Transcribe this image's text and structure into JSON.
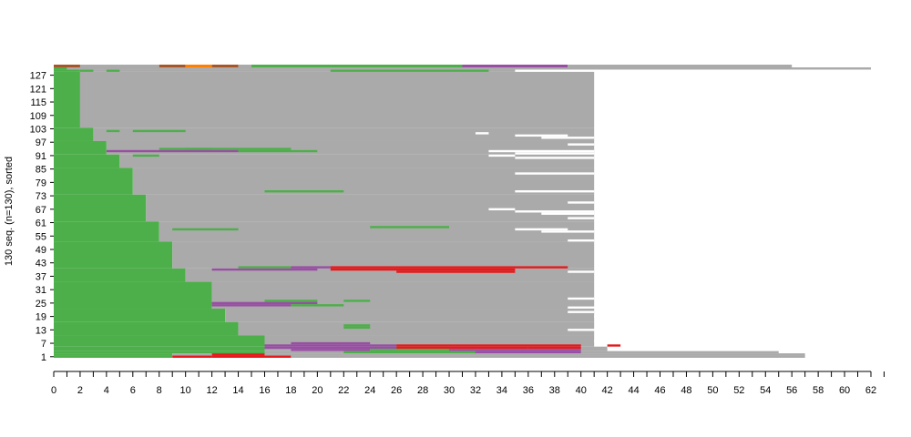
{
  "chart_data": {
    "type": "heatmap",
    "title": "",
    "xlabel": "",
    "ylabel": "130 seq. (n=130), sorted",
    "xlim": [
      0,
      62
    ],
    "ylim": [
      0,
      130
    ],
    "x_ticks": [
      0,
      2,
      4,
      6,
      8,
      10,
      12,
      14,
      16,
      18,
      20,
      22,
      24,
      26,
      28,
      30,
      32,
      34,
      36,
      38,
      40,
      42,
      44,
      46,
      48,
      50,
      52,
      54,
      56,
      58,
      60,
      62
    ],
    "y_ticks": [
      1,
      7,
      13,
      19,
      25,
      31,
      37,
      43,
      49,
      55,
      61,
      67,
      73,
      79,
      85,
      91,
      97,
      103,
      109,
      115,
      121,
      127
    ],
    "colors": {
      "green": "#4daf4a",
      "gray": "#aaaaaa",
      "purple": "#984ea3",
      "red": "#e41a1c",
      "orange": "#ff7f00",
      "brown": "#a65628"
    },
    "top_row": [
      {
        "start": 0,
        "end": 2,
        "state": "brown"
      },
      {
        "start": 2,
        "end": 8,
        "state": "gray"
      },
      {
        "start": 8,
        "end": 10,
        "state": "brown"
      },
      {
        "start": 10,
        "end": 12,
        "state": "orange"
      },
      {
        "start": 12,
        "end": 14,
        "state": "brown"
      },
      {
        "start": 14,
        "end": 15,
        "state": "gray"
      },
      {
        "start": 15,
        "end": 31,
        "state": "green"
      },
      {
        "start": 31,
        "end": 39,
        "state": "purple"
      },
      {
        "start": 39,
        "end": 56,
        "state": "gray"
      }
    ],
    "blocks": [
      {
        "y0": 129,
        "y1": 130,
        "segments": [
          [
            0,
            1,
            "green"
          ],
          [
            1,
            62,
            "gray"
          ]
        ]
      },
      {
        "y0": 128,
        "y1": 129,
        "segments": [
          [
            0,
            2,
            "green"
          ],
          [
            2,
            35,
            "gray"
          ]
        ]
      },
      {
        "y0": 103,
        "y1": 128,
        "segments": [
          [
            0,
            2,
            "green"
          ],
          [
            2,
            41,
            "gray"
          ]
        ]
      },
      {
        "y0": 97,
        "y1": 103,
        "segments": [
          [
            0,
            3,
            "green"
          ],
          [
            3,
            41,
            "gray"
          ]
        ]
      },
      {
        "y0": 91,
        "y1": 97,
        "segments": [
          [
            0,
            4,
            "green"
          ],
          [
            4,
            41,
            "gray"
          ]
        ]
      },
      {
        "y0": 85,
        "y1": 91,
        "segments": [
          [
            0,
            5,
            "green"
          ],
          [
            5,
            41,
            "gray"
          ]
        ]
      },
      {
        "y0": 73,
        "y1": 85,
        "segments": [
          [
            0,
            6,
            "green"
          ],
          [
            6,
            41,
            "gray"
          ]
        ]
      },
      {
        "y0": 61,
        "y1": 73,
        "segments": [
          [
            0,
            7,
            "green"
          ],
          [
            7,
            41,
            "gray"
          ]
        ]
      },
      {
        "y0": 52,
        "y1": 61,
        "segments": [
          [
            0,
            8,
            "green"
          ],
          [
            8,
            41,
            "gray"
          ]
        ]
      },
      {
        "y0": 40,
        "y1": 52,
        "segments": [
          [
            0,
            9,
            "green"
          ],
          [
            9,
            41,
            "gray"
          ]
        ]
      },
      {
        "y0": 34,
        "y1": 40,
        "segments": [
          [
            0,
            10,
            "green"
          ],
          [
            10,
            41,
            "gray"
          ]
        ]
      },
      {
        "y0": 22,
        "y1": 34,
        "segments": [
          [
            0,
            12,
            "green"
          ],
          [
            12,
            41,
            "gray"
          ]
        ]
      },
      {
        "y0": 16,
        "y1": 22,
        "segments": [
          [
            0,
            13,
            "green"
          ],
          [
            13,
            41,
            "gray"
          ]
        ]
      },
      {
        "y0": 10,
        "y1": 16,
        "segments": [
          [
            0,
            14,
            "green"
          ],
          [
            14,
            41,
            "gray"
          ]
        ]
      },
      {
        "y0": 5,
        "y1": 10,
        "segments": [
          [
            0,
            16,
            "green"
          ],
          [
            16,
            41,
            "gray"
          ]
        ]
      },
      {
        "y0": 3,
        "y1": 5,
        "segments": [
          [
            0,
            16,
            "green"
          ],
          [
            16,
            42,
            "gray"
          ]
        ]
      },
      {
        "y0": 2,
        "y1": 3,
        "segments": [
          [
            0,
            16,
            "green"
          ],
          [
            16,
            55,
            "gray"
          ]
        ]
      },
      {
        "y0": 1,
        "y1": 2,
        "segments": [
          [
            0,
            9,
            "green"
          ],
          [
            9,
            12,
            "gray"
          ],
          [
            12,
            16,
            "red"
          ],
          [
            16,
            57,
            "gray"
          ]
        ]
      },
      {
        "y0": 0,
        "y1": 1,
        "segments": [
          [
            0,
            9,
            "green"
          ],
          [
            9,
            12,
            "red"
          ],
          [
            12,
            16,
            "red"
          ],
          [
            16,
            18,
            "red"
          ],
          [
            18,
            57,
            "gray"
          ]
        ]
      }
    ],
    "overlays": [
      {
        "y": 128.5,
        "x0": 2,
        "x1": 3,
        "state": "green"
      },
      {
        "y": 128.5,
        "x0": 4,
        "x1": 5,
        "state": "green"
      },
      {
        "y": 128.5,
        "x0": 21,
        "x1": 33,
        "state": "green"
      },
      {
        "y": 101.5,
        "x0": 4,
        "x1": 5,
        "state": "green"
      },
      {
        "y": 101.5,
        "x0": 6,
        "x1": 10,
        "state": "green"
      },
      {
        "y": 100.5,
        "x0": 32,
        "x1": 33,
        "state": "white"
      },
      {
        "y": 99.5,
        "x0": 35,
        "x1": 39,
        "state": "white"
      },
      {
        "y": 98.5,
        "x0": 37,
        "x1": 41,
        "state": "white"
      },
      {
        "y": 95.5,
        "x0": 39,
        "x1": 41,
        "state": "white"
      },
      {
        "y": 93.5,
        "x0": 8,
        "x1": 18,
        "state": "green"
      },
      {
        "y": 93.5,
        "x0": 10,
        "x1": 12,
        "state": "green"
      },
      {
        "y": 92.5,
        "x0": 4,
        "x1": 14,
        "state": "purple"
      },
      {
        "y": 92.5,
        "x0": 14,
        "x1": 20,
        "state": "green"
      },
      {
        "y": 92.5,
        "x0": 33,
        "x1": 41,
        "state": "white"
      },
      {
        "y": 91.5,
        "x0": 35,
        "x1": 41,
        "state": "white"
      },
      {
        "y": 90.5,
        "x0": 6,
        "x1": 8,
        "state": "green"
      },
      {
        "y": 90.5,
        "x0": 33,
        "x1": 35,
        "state": "white"
      },
      {
        "y": 89.5,
        "x0": 35,
        "x1": 41,
        "state": "white"
      },
      {
        "y": 82.5,
        "x0": 35,
        "x1": 41,
        "state": "white"
      },
      {
        "y": 74.5,
        "x0": 16,
        "x1": 22,
        "state": "green"
      },
      {
        "y": 74.5,
        "x0": 35,
        "x1": 41,
        "state": "white"
      },
      {
        "y": 69.5,
        "x0": 39,
        "x1": 41,
        "state": "white"
      },
      {
        "y": 66.5,
        "x0": 33,
        "x1": 35,
        "state": "white"
      },
      {
        "y": 65.5,
        "x0": 35,
        "x1": 41,
        "state": "white"
      },
      {
        "y": 64.5,
        "x0": 37,
        "x1": 41,
        "state": "white"
      },
      {
        "y": 62.5,
        "x0": 39,
        "x1": 41,
        "state": "white"
      },
      {
        "y": 58.5,
        "x0": 24,
        "x1": 30,
        "state": "green"
      },
      {
        "y": 57.5,
        "x0": 9,
        "x1": 14,
        "state": "green"
      },
      {
        "y": 57.5,
        "x0": 35,
        "x1": 39,
        "state": "white"
      },
      {
        "y": 56.5,
        "x0": 37,
        "x1": 41,
        "state": "white"
      },
      {
        "y": 52.5,
        "x0": 39,
        "x1": 41,
        "state": "white"
      },
      {
        "y": 40.5,
        "x0": 14,
        "x1": 18,
        "state": "green"
      },
      {
        "y": 40.5,
        "x0": 18,
        "x1": 21,
        "state": "purple"
      },
      {
        "y": 40.5,
        "x0": 21,
        "x1": 39,
        "state": "red"
      },
      {
        "y": 39.5,
        "x0": 12,
        "x1": 20,
        "state": "purple"
      },
      {
        "y": 39.5,
        "x0": 21,
        "x1": 35,
        "state": "red"
      },
      {
        "y": 38.5,
        "x0": 26,
        "x1": 35,
        "state": "red"
      },
      {
        "y": 38.5,
        "x0": 39,
        "x1": 41,
        "state": "white"
      },
      {
        "y": 26.5,
        "x0": 39,
        "x1": 41,
        "state": "white"
      },
      {
        "y": 25.5,
        "x0": 16,
        "x1": 20,
        "state": "green"
      },
      {
        "y": 25.5,
        "x0": 22,
        "x1": 24,
        "state": "green"
      },
      {
        "y": 24.5,
        "x0": 12,
        "x1": 20,
        "state": "purple"
      },
      {
        "y": 23.5,
        "x0": 12,
        "x1": 18,
        "state": "purple"
      },
      {
        "y": 23.5,
        "x0": 18,
        "x1": 22,
        "state": "green"
      },
      {
        "y": 22.5,
        "x0": 39,
        "x1": 43,
        "state": "white"
      },
      {
        "y": 20.5,
        "x0": 39,
        "x1": 41,
        "state": "white"
      },
      {
        "y": 18.5,
        "x0": 41,
        "x1": 43,
        "state": "white"
      },
      {
        "y": 14.5,
        "x0": 22,
        "x1": 24,
        "state": "green"
      },
      {
        "y": 13.5,
        "x0": 22,
        "x1": 24,
        "state": "green"
      },
      {
        "y": 12.5,
        "x0": 39,
        "x1": 43,
        "state": "white"
      },
      {
        "y": 7.5,
        "x0": 41,
        "x1": 42,
        "state": "white"
      },
      {
        "y": 6.5,
        "x0": 18,
        "x1": 24,
        "state": "purple"
      },
      {
        "y": 5.5,
        "x0": 16,
        "x1": 26,
        "state": "purple"
      },
      {
        "y": 5.5,
        "x0": 26,
        "x1": 40,
        "state": "red"
      },
      {
        "y": 5.5,
        "x0": 42,
        "x1": 43,
        "state": "red"
      },
      {
        "y": 4.5,
        "x0": 16,
        "x1": 26,
        "state": "purple"
      },
      {
        "y": 4.5,
        "x0": 26,
        "x1": 36,
        "state": "red"
      },
      {
        "y": 4.5,
        "x0": 36,
        "x1": 40,
        "state": "red"
      },
      {
        "y": 3.5,
        "x0": 18,
        "x1": 24,
        "state": "purple"
      },
      {
        "y": 3.5,
        "x0": 24,
        "x1": 30,
        "state": "green"
      },
      {
        "y": 3.5,
        "x0": 30,
        "x1": 40,
        "state": "purple"
      },
      {
        "y": 2.5,
        "x0": 22,
        "x1": 32,
        "state": "green"
      },
      {
        "y": 2.5,
        "x0": 32,
        "x1": 40,
        "state": "purple"
      }
    ]
  }
}
